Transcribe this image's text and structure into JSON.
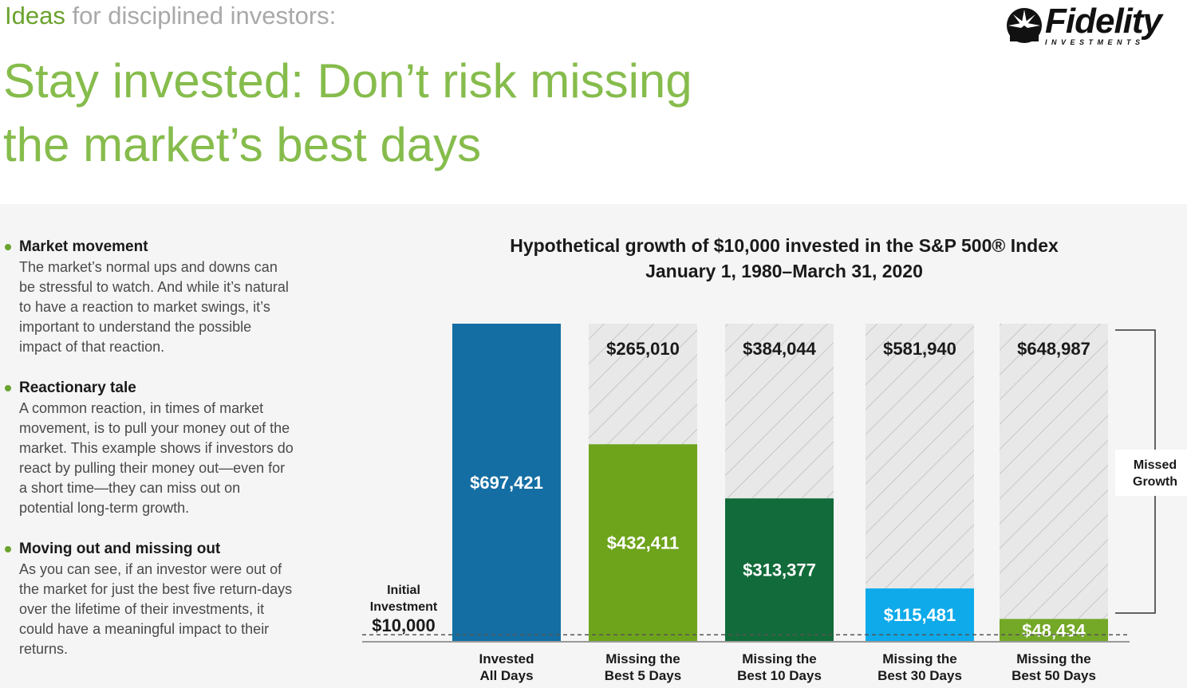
{
  "header": {
    "kicker_accent": "Ideas",
    "kicker_rest": " for disciplined investors:",
    "headline_line1": "Stay invested: Don’t risk missing",
    "headline_line2": "the market’s best days"
  },
  "logo": {
    "wordmark": "Fidelity",
    "subtext": "INVESTMENTS",
    "icon": "fidelity-logo-icon"
  },
  "bullets": [
    {
      "title": "Market movement",
      "text": "The market’s normal ups and downs can be stressful to watch. And while it’s natural to have a reaction to market swings, it’s important to understand the possible impact of that reaction."
    },
    {
      "title": "Reactionary tale",
      "text": "A common reaction, in times of market movement, is to pull your money out of the market. This example shows if investors do react by pulling their money out—even for a short time—they can miss out on potential long-term growth."
    },
    {
      "title": "Moving out and missing out",
      "text": "As you can see, if an investor were out of the market for just the best five return-days over the lifetime of their investments, it could have a meaningful impact to their returns."
    }
  ],
  "chart_data": {
    "type": "bar",
    "title": "Hypothetical growth of $10,000 invested in the S&P 500® Index",
    "subtitle": "January 1, 1980–March 31, 2020",
    "categories": [
      [
        "Invested",
        "All Days"
      ],
      [
        "Missing the",
        "Best 5 Days"
      ],
      [
        "Missing the",
        "Best 10 Days"
      ],
      [
        "Missing the",
        "Best 30 Days"
      ],
      [
        "Missing the",
        "Best 50 Days"
      ]
    ],
    "series": [
      {
        "values": [
          697421,
          432411,
          313377,
          115481,
          48434
        ],
        "labels": [
          "$697,421",
          "$432,411",
          "$313,377",
          "$115,481",
          "$48,434"
        ],
        "colors": [
          "#146ea3",
          "#6ea41b",
          "#126b3a",
          "#0eaaea",
          "#74a827"
        ]
      },
      {
        "values": [
          0,
          265010,
          384044,
          581940,
          648987
        ],
        "labels": [
          "",
          "$265,010",
          "$384,044",
          "$581,940",
          "$648,987"
        ],
        "fill": "hatched-gray"
      }
    ],
    "ylim": [
      0,
      697421
    ],
    "baseline": {
      "value": 10000,
      "label_line1": "Initial",
      "label_line2": "Investment",
      "label_value": "$10,000"
    },
    "bracket_label_line1": "Missed",
    "bracket_label_line2": "Growth",
    "grid": false,
    "legend": "none"
  }
}
